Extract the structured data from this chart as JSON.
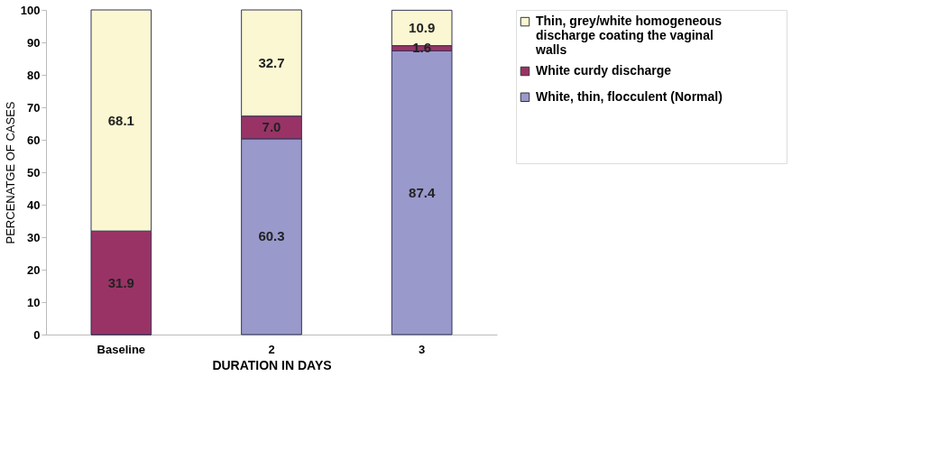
{
  "chart_data": {
    "type": "bar",
    "stacked": true,
    "xlabel": "DURATION IN DAYS",
    "ylabel": "PERCENATGE OF CASES",
    "categories": [
      "Baseline",
      "2",
      "3"
    ],
    "series": [
      {
        "name": "White, thin, flocculent (Normal)",
        "color": "#9999cc",
        "values": [
          0,
          60.3,
          87.4
        ],
        "value_labels": [
          null,
          "60.3",
          "87.4"
        ]
      },
      {
        "name": "White curdy discharge",
        "color": "#993366",
        "values": [
          31.9,
          7.0,
          1.6
        ],
        "value_labels": [
          "31.9",
          "7.0",
          "1.6"
        ]
      },
      {
        "name": "Thin, grey/white homogeneous discharge coating the vaginal walls",
        "color": "#faf7d2",
        "values": [
          68.1,
          32.7,
          10.9
        ],
        "value_labels": [
          "68.1",
          "32.7",
          "10.9"
        ]
      }
    ],
    "ylim": [
      0,
      100
    ],
    "yticks": [
      0,
      10,
      20,
      30,
      40,
      50,
      60,
      70,
      80,
      90,
      100
    ],
    "grid": false,
    "legend": "right"
  }
}
